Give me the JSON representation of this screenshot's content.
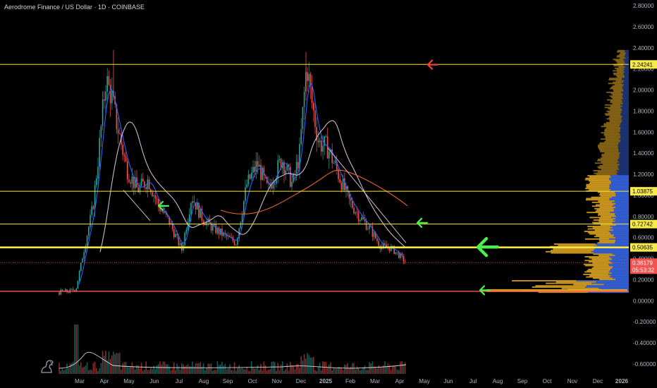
{
  "header": {
    "title": "Aerodrome Finance / US Dollar · 1D · COINBASE"
  },
  "colors": {
    "background": "#000000",
    "candle_up": "#26a69a",
    "candle_down": "#ef5350",
    "level_line": "#f5e642",
    "level_tag": "#f7ea4a",
    "support_line": "#ff5252",
    "price_tag": "#f05350",
    "ma_fast": "#2962ff",
    "ma_mid": "#d1b7cf",
    "ma_slow": "#e0672b",
    "vp_up": "#3b6cf2",
    "vp_down": "#e6ac22",
    "arrow_green": "#4cef4c",
    "arrow_red": "#f44336"
  },
  "price_axis": {
    "ticks": [
      "2.80000",
      "2.60000",
      "2.40000",
      "2.20000",
      "2.00000",
      "1.80000",
      "1.60000",
      "1.40000",
      "1.20000",
      "1.00000",
      "0.80000",
      "0.60000",
      "0.40000",
      "0.20000",
      "0.00000",
      "-0.20000",
      "-0.40000",
      "-0.60000"
    ],
    "min": -0.6,
    "max": 2.8
  },
  "time_axis": {
    "labels": [
      "Mar",
      "Apr",
      "May",
      "Jun",
      "Jul",
      "Aug",
      "Sep",
      "Oct",
      "Nov",
      "Dec",
      "2025",
      "Feb",
      "Mar",
      "Apr",
      "May",
      "Jun",
      "Jul",
      "Aug",
      "Sep",
      "Oct",
      "Nov",
      "Dec",
      "2026"
    ]
  },
  "levels": [
    {
      "label": "2.24241",
      "value": 2.24241
    },
    {
      "label": "1.03875",
      "value": 1.03875
    },
    {
      "label": "0.72742",
      "value": 0.72742
    },
    {
      "label": "0.50635",
      "value": 0.50635
    }
  ],
  "support_level": {
    "value": 0.09
  },
  "current_price": {
    "label": "0.36179",
    "countdown": "05:53:32",
    "value": 0.36179
  },
  "arrows": [
    {
      "color": "red",
      "direction": "left",
      "size": "small",
      "value": 2.24
    },
    {
      "color": "green",
      "direction": "left",
      "size": "small",
      "value": 0.9
    },
    {
      "color": "green",
      "direction": "left",
      "size": "small",
      "value": 0.74
    },
    {
      "color": "green",
      "direction": "left",
      "size": "large",
      "value": 0.51
    },
    {
      "color": "green",
      "direction": "left",
      "size": "small",
      "value": 0.1
    }
  ],
  "icons": {
    "logo": "tradingview-dino-icon"
  },
  "chart_data": {
    "type": "candlestick",
    "title": "Aerodrome Finance / US Dollar · 1D · COINBASE",
    "x": [
      "Mar",
      "Apr",
      "May",
      "Jun",
      "Jul",
      "Aug",
      "Sep",
      "Oct",
      "Nov",
      "Dec",
      "2025",
      "Feb",
      "Mar",
      "Apr"
    ],
    "close_path": [
      0.1,
      0.7,
      1.6,
      1.1,
      1.05,
      0.55,
      0.75,
      0.55,
      1.15,
      1.3,
      2.2,
      1.3,
      0.7,
      0.36
    ],
    "moving_averages": [
      "ma_fast",
      "ma_mid",
      "ma_slow"
    ],
    "ylim": [
      -0.6,
      2.8
    ],
    "grid": false
  }
}
